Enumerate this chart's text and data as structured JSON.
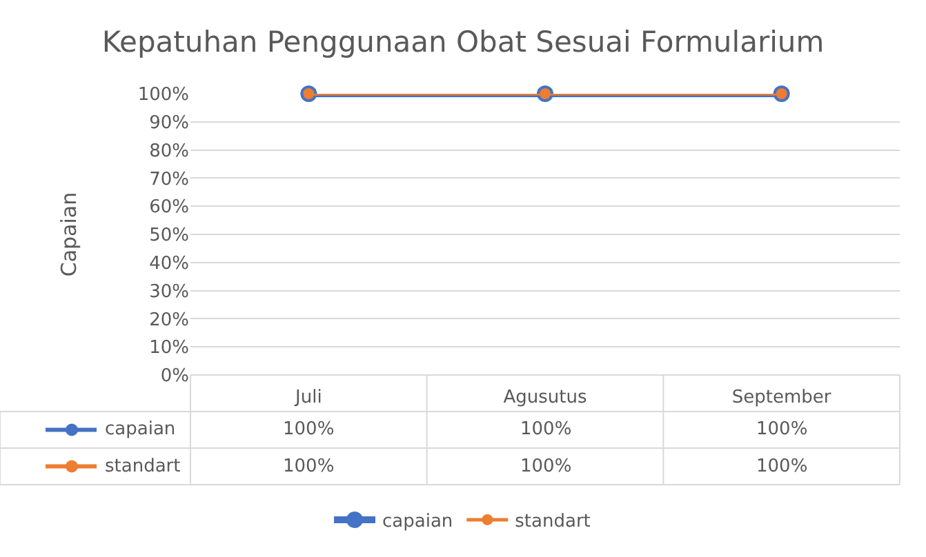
{
  "chart_data": {
    "type": "line",
    "title": "Kepatuhan Penggunaan Obat Sesuai Formularium",
    "ylabel": "Capaian",
    "categories": [
      "Juli",
      "Agusutus",
      "September"
    ],
    "series": [
      {
        "name": "capaian",
        "color": "#4472c4",
        "values": [
          100,
          100,
          100
        ],
        "value_labels": [
          "100%",
          "100%",
          "100%"
        ]
      },
      {
        "name": "standart",
        "color": "#ed7d31",
        "values": [
          100,
          100,
          100
        ],
        "value_labels": [
          "100%",
          "100%",
          "100%"
        ]
      }
    ],
    "ylim": [
      0,
      100
    ],
    "yticks": [
      {
        "value": 0,
        "label": "0%"
      },
      {
        "value": 10,
        "label": "10%"
      },
      {
        "value": 20,
        "label": "20%"
      },
      {
        "value": 30,
        "label": "30%"
      },
      {
        "value": 40,
        "label": "40%"
      },
      {
        "value": 50,
        "label": "50%"
      },
      {
        "value": 60,
        "label": "60%"
      },
      {
        "value": 70,
        "label": "70%"
      },
      {
        "value": 80,
        "label": "80%"
      },
      {
        "value": 90,
        "label": "90%"
      },
      {
        "value": 100,
        "label": "100%"
      }
    ],
    "grid": "y",
    "legend": "bottom",
    "marker": "circle",
    "line_style": "solid"
  }
}
